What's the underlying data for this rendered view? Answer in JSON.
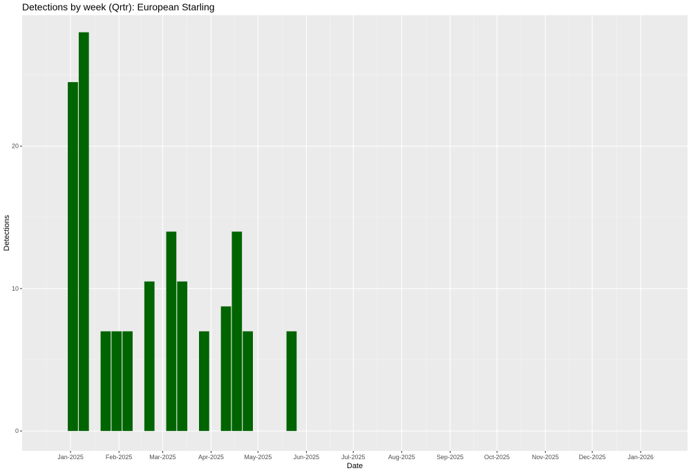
{
  "chart_data": {
    "type": "bar",
    "title": "Detections by week (Qrtr): European Starling",
    "xlabel": "Date",
    "ylabel": "Detections",
    "x_axis": "date",
    "xlim": [
      "2024-12-01",
      "2026-01-31"
    ],
    "ylim": [
      -1.4,
      29.2
    ],
    "y_ticks": [
      0,
      10,
      20
    ],
    "x_ticks": [
      {
        "date": "2025-01-01",
        "label": "Jan-2025"
      },
      {
        "date": "2025-02-01",
        "label": "Feb-2025"
      },
      {
        "date": "2025-03-01",
        "label": "Mar-2025"
      },
      {
        "date": "2025-04-01",
        "label": "Apr-2025"
      },
      {
        "date": "2025-05-01",
        "label": "May-2025"
      },
      {
        "date": "2025-06-01",
        "label": "Jun-2025"
      },
      {
        "date": "2025-07-01",
        "label": "Jul-2025"
      },
      {
        "date": "2025-08-01",
        "label": "Aug-2025"
      },
      {
        "date": "2025-09-01",
        "label": "Sep-2025"
      },
      {
        "date": "2025-10-01",
        "label": "Oct-2025"
      },
      {
        "date": "2025-11-01",
        "label": "Nov-2025"
      },
      {
        "date": "2025-12-01",
        "label": "Dec-2025"
      },
      {
        "date": "2026-01-01",
        "label": "Jan-2026"
      }
    ],
    "x": [
      "2024-12-30",
      "2025-01-06",
      "2025-01-20",
      "2025-01-27",
      "2025-02-03",
      "2025-02-17",
      "2025-03-03",
      "2025-03-10",
      "2025-03-24",
      "2025-04-07",
      "2025-04-14",
      "2025-04-21",
      "2025-05-19"
    ],
    "values": [
      24.5,
      28,
      7,
      7,
      7,
      10.5,
      14,
      10.5,
      7,
      8.75,
      14,
      7,
      7
    ],
    "grid": true,
    "colors": {
      "bar": "#006400",
      "panel": "#ebebeb",
      "grid_major": "#ffffff",
      "grid_minor": "#f5f5f5",
      "tick_text": "#4d4d4d"
    }
  }
}
